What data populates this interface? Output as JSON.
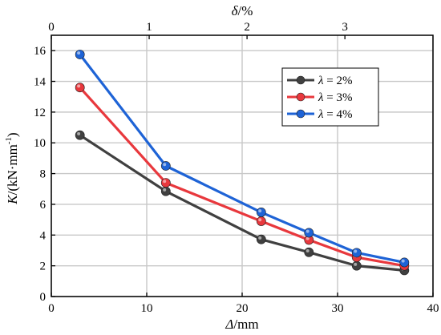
{
  "chart_data": {
    "type": "line",
    "xlabel_main": "Δ",
    "xlabel_unit": "/mm",
    "top_xlabel_main": "δ",
    "top_xlabel_unit": "/%",
    "ylabel_main": "K",
    "ylabel_unit": "/(kN·mm",
    "ylabel_exp": "-1",
    "ylabel_close": ")",
    "xlim": [
      0,
      40
    ],
    "ylim": [
      0,
      17
    ],
    "top_xlim": [
      0,
      3.9
    ],
    "x_ticks": [
      0,
      10,
      20,
      30,
      40
    ],
    "y_ticks": [
      0,
      2,
      4,
      6,
      8,
      10,
      12,
      14,
      16
    ],
    "top_x_ticks": [
      0,
      1,
      2,
      3
    ],
    "grid": true,
    "legend_position": "top-right",
    "x": [
      3,
      12,
      22,
      27,
      32,
      37
    ],
    "series": [
      {
        "name": "= 2%",
        "prefix": "λ",
        "color": "#404040",
        "values": [
          10.5,
          6.85,
          3.72,
          2.88,
          2.0,
          1.7
        ]
      },
      {
        "name": "= 3%",
        "prefix": "λ",
        "color": "#e8383d",
        "values": [
          13.6,
          7.4,
          4.9,
          3.68,
          2.55,
          2.0
        ]
      },
      {
        "name": "= 4%",
        "prefix": "λ",
        "color": "#1e63d6",
        "values": [
          15.75,
          8.5,
          5.48,
          4.15,
          2.85,
          2.22
        ]
      }
    ]
  }
}
